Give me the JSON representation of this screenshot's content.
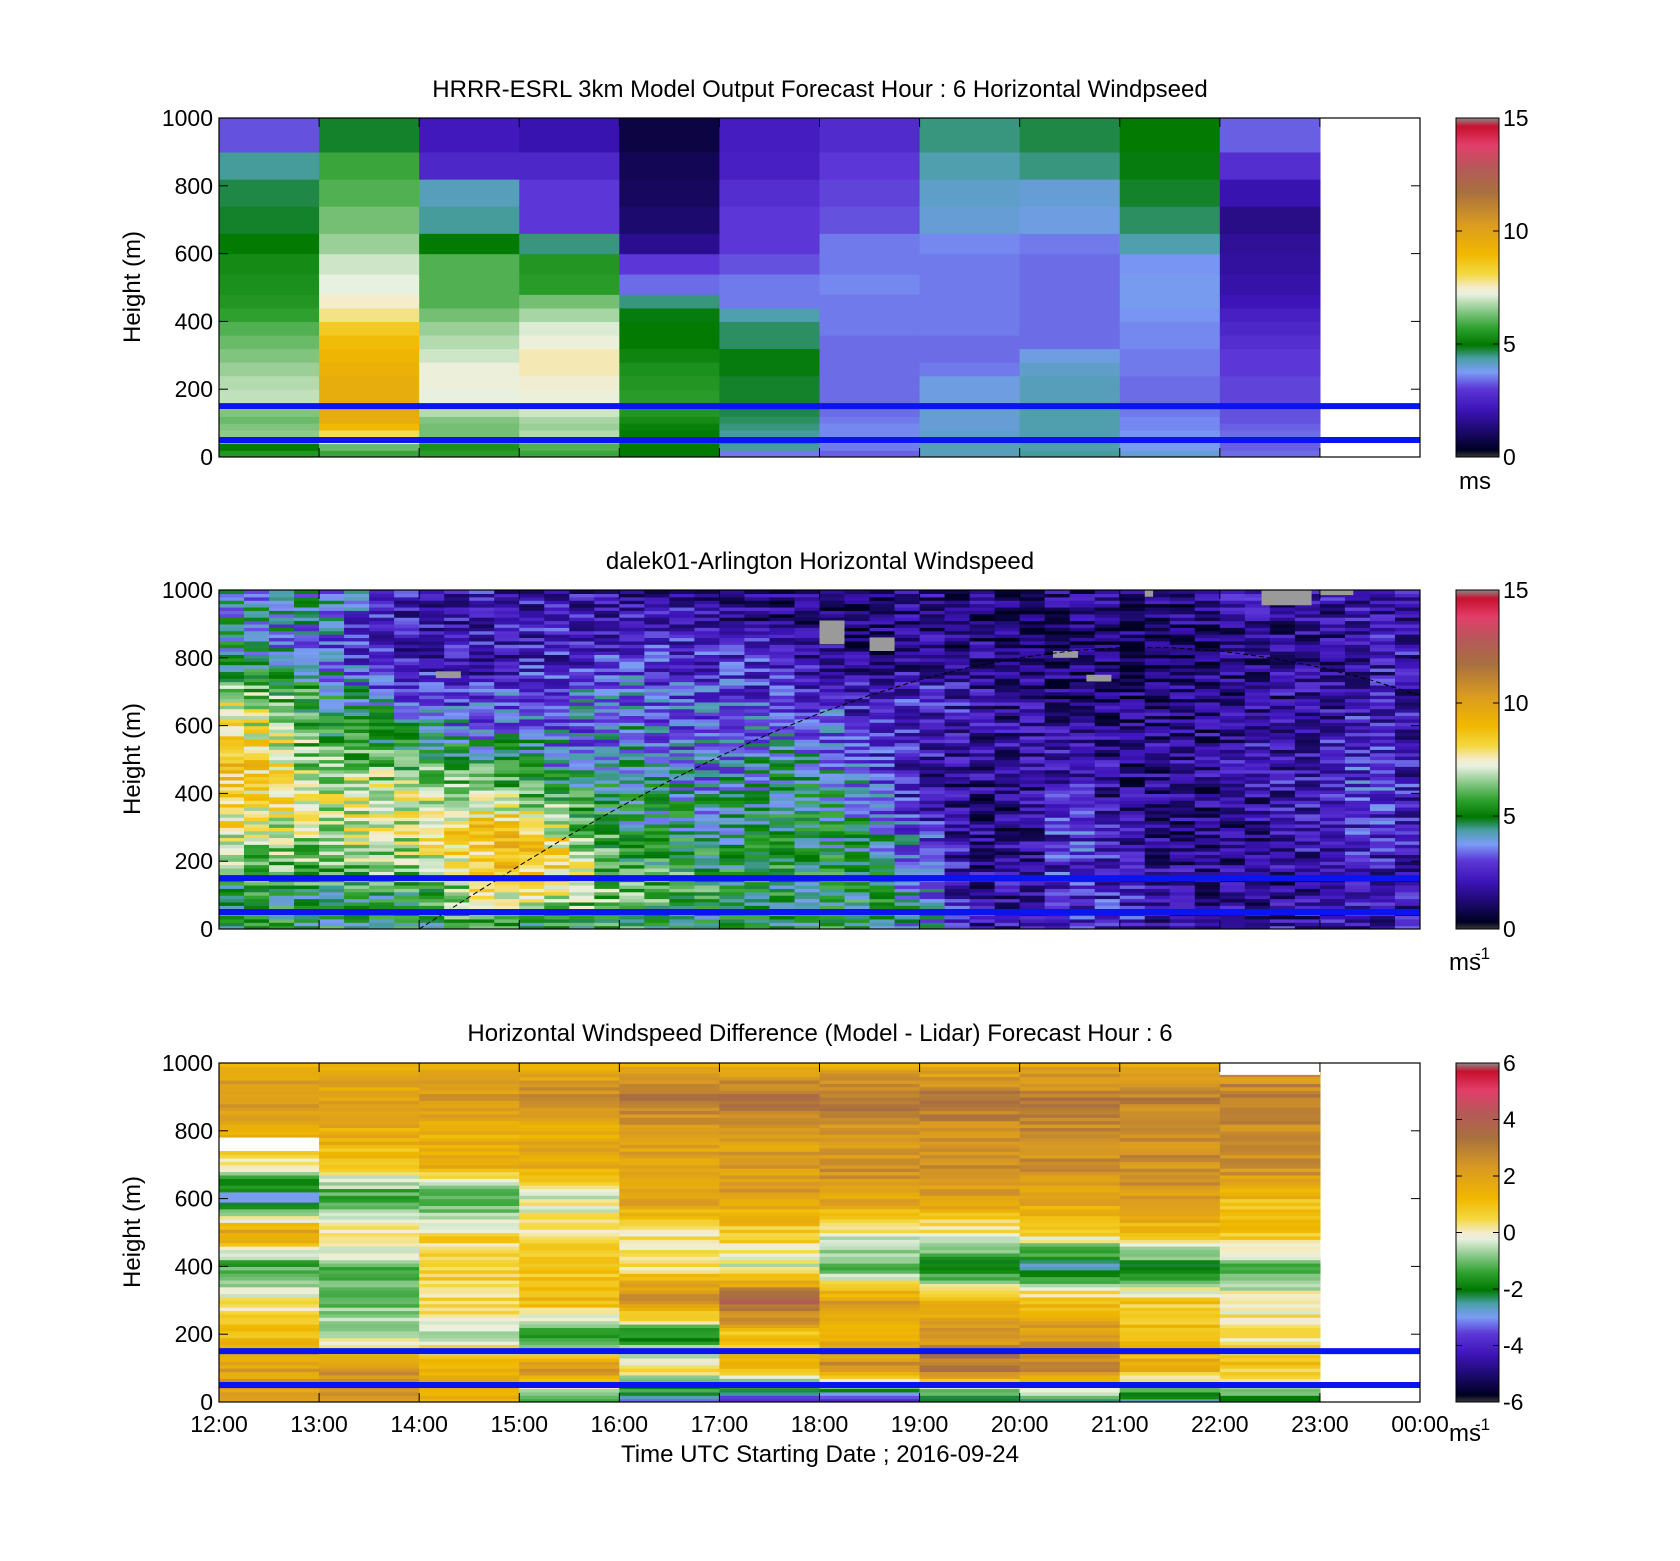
{
  "figure": {
    "xlabel": "Time UTC  Starting Date ; 2016-09-24",
    "x_ticks": [
      "12:00",
      "13:00",
      "14:00",
      "15:00",
      "16:00",
      "17:00",
      "18:00",
      "19:00",
      "20:00",
      "21:00",
      "22:00",
      "23:00",
      "00:00"
    ],
    "colors": {
      "heights_band_lines": "#0a14f0",
      "missing_data": "#9a9a9a"
    }
  },
  "chart_data": [
    {
      "type": "heatmap",
      "title": "HRRR-ESRL 3km Model Output   Forecast Hour : 6 Horizontal Windpseed",
      "ylabel": "Height (m)",
      "xlabel": "",
      "xlim": [
        "12:00",
        "00:00"
      ],
      "ylim": [
        0,
        1000
      ],
      "y_ticks": [
        "0",
        "200",
        "400",
        "600",
        "800",
        "1000"
      ],
      "x_ticks": [
        "",
        "",
        "",
        "",
        "",
        "",
        "",
        "",
        "",
        "",
        "",
        "",
        ""
      ],
      "colorbar": {
        "min": 0,
        "max": 15,
        "ticks": [
          "0",
          "5",
          "10",
          "15"
        ],
        "unit": "ms"
      },
      "columns_hours": [
        12,
        13,
        14,
        15,
        16,
        17,
        18,
        19,
        20,
        21,
        22
      ],
      "levels_m": [
        20,
        40,
        60,
        80,
        100,
        120,
        140,
        160,
        200,
        240,
        280,
        320,
        360,
        400,
        440,
        480,
        540,
        600,
        660,
        740,
        820,
        900,
        1000
      ],
      "values_ms": [
        [
          5.5,
          5.8,
          5.6,
          5.8,
          5.0,
          3.5,
          3.3,
          4.2,
          4.4,
          4.0,
          3.4
        ],
        [
          5.0,
          6.2,
          5.4,
          6.0,
          5.0,
          4.4,
          3.5,
          4.2,
          4.3,
          3.8,
          3.3
        ],
        [
          6.2,
          7.5,
          6.0,
          6.4,
          5.2,
          4.6,
          3.6,
          4.2,
          4.4,
          3.8,
          3.3
        ],
        [
          6.5,
          8.0,
          6.3,
          6.8,
          5.0,
          4.4,
          3.6,
          4.1,
          4.3,
          3.7,
          3.4
        ],
        [
          6.4,
          9.0,
          6.3,
          6.6,
          5.1,
          4.5,
          3.6,
          4.0,
          4.3,
          3.6,
          3.3
        ],
        [
          6.2,
          9.5,
          6.4,
          6.7,
          5.3,
          4.6,
          3.5,
          4.0,
          4.3,
          3.6,
          3.2
        ],
        [
          6.4,
          9.6,
          6.8,
          7.0,
          5.5,
          4.7,
          3.4,
          4.0,
          4.3,
          3.5,
          3.2
        ],
        [
          6.7,
          9.6,
          7.0,
          7.2,
          5.6,
          4.8,
          3.4,
          4.0,
          4.3,
          3.4,
          3.2
        ],
        [
          6.9,
          9.5,
          7.2,
          7.3,
          5.6,
          4.8,
          3.4,
          3.9,
          4.2,
          3.4,
          3.1
        ],
        [
          6.8,
          9.5,
          7.3,
          7.4,
          5.5,
          4.8,
          3.4,
          3.9,
          4.2,
          3.4,
          3.1
        ],
        [
          6.6,
          9.3,
          7.3,
          7.6,
          5.4,
          4.9,
          3.4,
          3.5,
          4.1,
          3.5,
          3.0
        ],
        [
          6.4,
          9.1,
          7.0,
          7.6,
          5.2,
          4.9,
          3.4,
          3.4,
          3.9,
          3.5,
          3.0
        ],
        [
          6.2,
          8.9,
          6.8,
          7.3,
          5.0,
          4.6,
          3.4,
          3.4,
          3.4,
          3.6,
          2.8
        ],
        [
          6.0,
          8.5,
          6.6,
          7.1,
          5.0,
          4.6,
          3.5,
          3.5,
          3.4,
          3.6,
          2.6
        ],
        [
          5.7,
          7.8,
          6.3,
          6.7,
          4.9,
          4.3,
          3.5,
          3.5,
          3.4,
          3.7,
          2.4
        ],
        [
          5.5,
          7.5,
          6.0,
          6.3,
          4.5,
          3.5,
          3.5,
          3.5,
          3.4,
          3.8,
          2.1
        ],
        [
          5.4,
          7.2,
          6.0,
          5.6,
          3.4,
          3.5,
          3.6,
          3.5,
          3.4,
          3.8,
          1.9
        ],
        [
          5.3,
          7.0,
          6.0,
          5.5,
          3.0,
          3.2,
          3.5,
          3.5,
          3.4,
          3.7,
          1.8
        ],
        [
          5.0,
          6.6,
          5.0,
          4.5,
          1.6,
          3.0,
          3.5,
          3.6,
          3.5,
          4.3,
          1.7
        ],
        [
          4.8,
          6.3,
          4.4,
          3.0,
          1.2,
          3.0,
          3.2,
          4.0,
          3.9,
          4.6,
          1.5
        ],
        [
          4.7,
          6.0,
          4.2,
          3.0,
          1.0,
          2.8,
          3.1,
          4.1,
          4.0,
          4.8,
          2.0
        ],
        [
          4.4,
          5.8,
          2.6,
          2.6,
          0.9,
          2.4,
          3.0,
          4.3,
          4.5,
          4.9,
          2.8
        ],
        [
          3.2,
          4.8,
          2.2,
          2.0,
          0.7,
          2.3,
          2.7,
          4.5,
          4.7,
          5.0,
          3.3
        ]
      ],
      "reference_lines_m": [
        50,
        150
      ],
      "empty_after": "23:00"
    },
    {
      "type": "heatmap",
      "title": "dalek01-Arlington  Horizontal Windspeed",
      "ylabel": "Height (m)",
      "xlabel": "",
      "xlim": [
        "12:00",
        "00:00"
      ],
      "ylim": [
        0,
        1000
      ],
      "y_ticks": [
        "0",
        "200",
        "400",
        "600",
        "800",
        "1000"
      ],
      "x_ticks": [
        "",
        "",
        "",
        "",
        "",
        "",
        "",
        "",
        "",
        "",
        "",
        "",
        ""
      ],
      "colorbar": {
        "min": 0,
        "max": 15,
        "ticks": [
          "0",
          "5",
          "10",
          "15"
        ],
        "unit": "ms-1"
      },
      "time_range": [
        "12:00",
        "23:52"
      ],
      "time_step_minutes": 15,
      "profile_control_hours": [
        12.0,
        12.5,
        13.0,
        13.5,
        14.0,
        14.5,
        15.0,
        15.5,
        16.0,
        16.5,
        17.0,
        17.5,
        18.0,
        18.5,
        19.0,
        19.5,
        20.0,
        20.5,
        21.0,
        21.5,
        22.0,
        22.5,
        23.0,
        23.5,
        23.9
      ],
      "profile_control_heights_m": [
        0,
        100,
        200,
        300,
        400,
        500,
        600,
        700,
        800,
        900,
        1000
      ],
      "profile_control_values_ms": [
        [
          5.5,
          5.0,
          6.5,
          7.8,
          8.5,
          9.0,
          8.8,
          7.0,
          4.5,
          4.5,
          4.2
        ],
        [
          5.0,
          5.0,
          6.3,
          7.0,
          8.0,
          8.0,
          7.0,
          6.0,
          4.5,
          4.0,
          4.0
        ],
        [
          5.0,
          5.0,
          6.3,
          6.8,
          7.2,
          6.2,
          5.5,
          5.2,
          3.5,
          3.8,
          4.3
        ],
        [
          5.0,
          5.2,
          6.5,
          7.3,
          7.4,
          6.3,
          5.0,
          3.8,
          2.6,
          2.6,
          3.6
        ],
        [
          5.0,
          5.0,
          6.8,
          7.3,
          7.0,
          5.5,
          4.8,
          2.7,
          2.2,
          2.0,
          2.4
        ],
        [
          5.0,
          6.8,
          8.3,
          8.5,
          6.8,
          5.5,
          3.5,
          2.5,
          2.0,
          2.1,
          2.2
        ],
        [
          5.0,
          7.8,
          9.0,
          9.0,
          6.5,
          5.0,
          3.5,
          3.0,
          2.2,
          2.2,
          2.0
        ],
        [
          5.2,
          6.6,
          8.2,
          6.6,
          5.5,
          3.5,
          3.3,
          3.3,
          2.5,
          2.4,
          2.0
        ],
        [
          5.2,
          6.3,
          5.4,
          4.8,
          4.5,
          3.8,
          3.8,
          3.7,
          2.6,
          2.2,
          1.8
        ],
        [
          5.0,
          6.0,
          5.4,
          4.8,
          4.5,
          4.0,
          3.2,
          3.0,
          2.6,
          2.2,
          1.9
        ],
        [
          5.0,
          5.2,
          5.0,
          4.6,
          4.0,
          3.7,
          3.5,
          3.0,
          2.6,
          2.2,
          1.7
        ],
        [
          5.0,
          5.0,
          5.2,
          5.0,
          4.5,
          4.2,
          3.2,
          2.8,
          2.4,
          1.6,
          1.5
        ],
        [
          5.0,
          5.0,
          5.0,
          4.8,
          4.7,
          4.3,
          3.6,
          2.6,
          1.8,
          1.2,
          1.3
        ],
        [
          5.0,
          5.0,
          4.5,
          4.3,
          3.5,
          2.7,
          2.3,
          2.0,
          1.3,
          1.2,
          1.5
        ],
        [
          4.0,
          4.0,
          3.5,
          3.0,
          2.0,
          2.2,
          2.5,
          2.6,
          1.8,
          1.5,
          1.5
        ],
        [
          2.0,
          1.8,
          1.7,
          1.6,
          1.5,
          1.7,
          2.1,
          2.0,
          1.6,
          1.5,
          1.5
        ],
        [
          2.0,
          2.0,
          1.6,
          1.4,
          1.3,
          1.8,
          1.8,
          1.5,
          1.2,
          1.1,
          1.4
        ],
        [
          2.6,
          2.6,
          2.8,
          3.0,
          2.6,
          2.2,
          1.8,
          1.4,
          1.0,
          1.0,
          1.5
        ],
        [
          2.5,
          2.4,
          2.4,
          2.0,
          1.6,
          1.6,
          1.4,
          1.2,
          1.0,
          1.2,
          1.6
        ],
        [
          2.0,
          2.2,
          1.6,
          1.4,
          1.4,
          1.6,
          1.6,
          1.4,
          1.1,
          1.2,
          1.6
        ],
        [
          2.0,
          1.6,
          1.5,
          1.4,
          1.5,
          1.8,
          1.6,
          1.3,
          1.3,
          1.5,
          2.0
        ],
        [
          2.0,
          1.7,
          1.7,
          1.8,
          2.0,
          2.2,
          2.0,
          1.8,
          1.6,
          1.5,
          2.0
        ],
        [
          2.0,
          1.8,
          1.9,
          2.2,
          2.4,
          2.2,
          2.0,
          1.8,
          1.7,
          1.7,
          2.0
        ],
        [
          2.2,
          2.2,
          2.4,
          2.8,
          3.0,
          2.9,
          2.6,
          2.3,
          2.0,
          2.0,
          2.1
        ],
        [
          2.2,
          2.1,
          2.3,
          2.4,
          2.3,
          2.2,
          2.0,
          2.0,
          2.2,
          2.1,
          1.9
        ]
      ],
      "missing_patches": [
        {
          "t0": "18:00",
          "t1": "18:15",
          "h0": 840,
          "h1": 910
        },
        {
          "t0": "18:30",
          "t1": "18:45",
          "h0": 820,
          "h1": 860
        },
        {
          "t0": "14:10",
          "t1": "14:25",
          "h0": 740,
          "h1": 760
        },
        {
          "t0": "20:20",
          "t1": "20:35",
          "h0": 800,
          "h1": 820
        },
        {
          "t0": "20:40",
          "t1": "20:55",
          "h0": 730,
          "h1": 750
        },
        {
          "t0": "21:15",
          "t1": "21:20",
          "h0": 980,
          "h1": 1000
        },
        {
          "t0": "22:25",
          "t1": "22:55",
          "h0": 955,
          "h1": 1000
        },
        {
          "t0": "23:00",
          "t1": "23:20",
          "h0": 985,
          "h1": 1000
        }
      ],
      "sun_elevation_curve": {
        "x_hours": [
          14.0,
          14.5,
          15.0,
          15.5,
          16.0,
          16.5,
          17.0,
          17.5,
          18.0,
          18.5,
          19.0,
          19.5,
          20.0,
          20.5,
          21.0,
          21.5,
          22.0,
          22.5,
          23.0,
          23.5,
          24.0
        ],
        "height_m": [
          0,
          94,
          187,
          276,
          359,
          437,
          509,
          576,
          636,
          689,
          735,
          772,
          800,
          820,
          830,
          830,
          820,
          800,
          772,
          735,
          689
        ]
      },
      "reference_lines_m": [
        50,
        150
      ]
    },
    {
      "type": "heatmap",
      "title": "Horizontal Windspeed Difference (Model - Lidar) Forecast Hour : 6",
      "ylabel": "Height (m)",
      "xlabel": "Time UTC  Starting Date ; 2016-09-24",
      "xlim": [
        "12:00",
        "00:00"
      ],
      "ylim": [
        0,
        1000
      ],
      "y_ticks": [
        "0",
        "200",
        "400",
        "600",
        "800",
        "1000"
      ],
      "x_ticks": [
        "12:00",
        "13:00",
        "14:00",
        "15:00",
        "16:00",
        "17:00",
        "18:00",
        "19:00",
        "20:00",
        "21:00",
        "22:00",
        "23:00",
        "00:00"
      ],
      "colorbar": {
        "min": -6,
        "max": 6,
        "ticks": [
          "-6",
          "-4",
          "-2",
          "0",
          "2",
          "4",
          "6"
        ],
        "unit": "ms-1"
      },
      "columns_hours": [
        12,
        13,
        14,
        15,
        16,
        17,
        18,
        19,
        20,
        21,
        22
      ],
      "profile_control_heights_m": [
        0,
        100,
        200,
        300,
        400,
        500,
        600,
        700,
        800,
        900,
        1000
      ],
      "profile_control_values_ms": [
        [
          2.0,
          2.5,
          1.2,
          -1.5,
          -3.0,
          -4.0,
          -4.5,
          -3.0,
          -2.3,
          -2.4,
          -2.0
        ],
        [
          2.0,
          2.5,
          1.6,
          2.5,
          0.6,
          1.0,
          2.7,
          3.5,
          3.0,
          1.6,
          1.0
        ],
        [
          1.0,
          -0.5,
          -0.5,
          -2.0,
          -2.0,
          1.0,
          1.3,
          2.2,
          2.3,
          1.0,
          0.2
        ],
        [
          0.3,
          -1.0,
          0.5,
          1.5,
          3.0,
          4.0,
          2.0,
          1.6,
          1.1,
          0.8,
          0.0
        ],
        [
          -1.5,
          -1.0,
          0.6,
          0.7,
          0.3,
          -0.3,
          -1.5,
          -2.2,
          -2.6,
          -2.0,
          -1.0
        ],
        [
          2.0,
          0.5,
          0.5,
          0.3,
          0.3,
          0.7,
          0.0,
          0.1,
          0.6,
          1.0,
          1.0
        ],
        [
          -3.0,
          -1.8,
          -1.5,
          -0.2,
          2.0,
          2.0,
          2.0,
          2.0,
          2.0,
          2.2,
          1.2
        ],
        [
          0.0,
          1.0,
          1.6,
          1.8,
          2.0,
          2.2,
          2.5,
          2.5,
          2.5,
          2.5,
          2.7
        ],
        [
          1.8,
          1.6,
          1.6,
          1.7,
          2.0,
          2.0,
          2.2,
          2.5,
          2.7,
          2.7,
          2.5
        ],
        [
          2.5,
          2.0,
          2.2,
          2.6,
          3.0,
          3.3,
          3.3,
          3.1,
          3.0,
          3.0,
          3.0
        ],
        [
          1.5,
          1.5,
          1.4,
          1.5,
          1.5,
          1.5,
          1.5,
          1.5,
          1.6,
          1.8,
          1.9
        ]
      ],
      "gaps": [
        {
          "t0": "12:00",
          "t1": "13:00",
          "h0": 740,
          "h1": 780
        },
        {
          "t0": "22:00",
          "t1": "23:00",
          "h0": 965,
          "h1": 1000
        }
      ],
      "reference_lines_m": [
        50,
        150
      ],
      "empty_after": "23:00"
    }
  ]
}
